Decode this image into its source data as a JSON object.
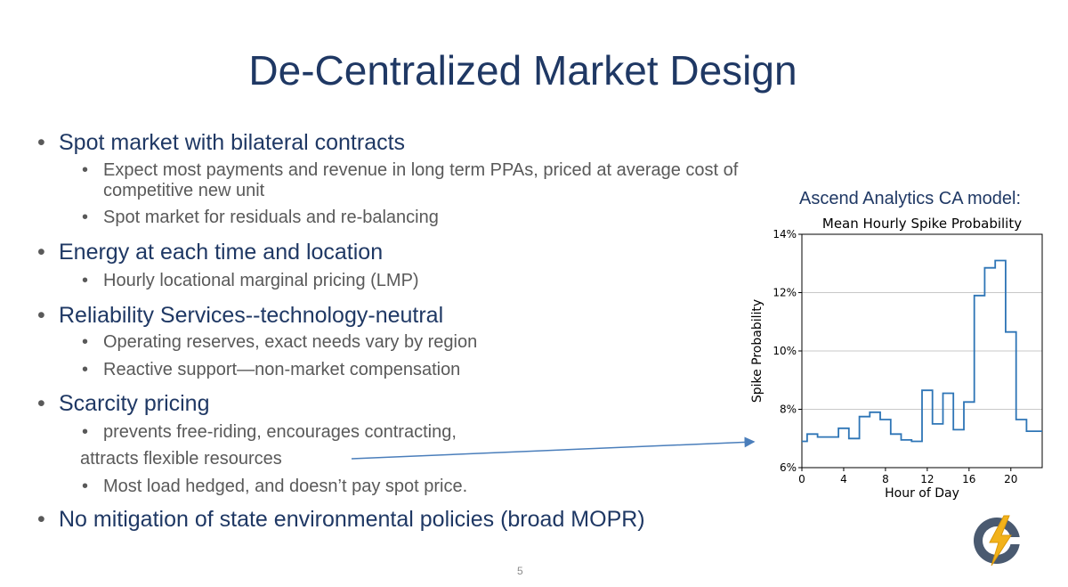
{
  "slide": {
    "title": "De-Centralized Market Design",
    "page_number": "5"
  },
  "bullets": {
    "b1": "Spot market with bilateral contracts",
    "b1_s1_line1": "Expect most payments and revenue in long term PPAs, priced at average cost of",
    "b1_s1_line2": "competitive new unit",
    "b1_s2": "Spot market for residuals and re-balancing",
    "b2": "Energy at each time and location",
    "b2_s1": "Hourly locational marginal pricing (LMP)",
    "b3": "Reliability Services--technology-neutral",
    "b3_s1": "Operating reserves, exact needs vary by region",
    "b3_s2": "Reactive support—non-market compensation",
    "b4": "Scarcity pricing",
    "b4_s1_line1": "prevents free-riding, encourages contracting,",
    "b4_s1_line2": "attracts flexible resources",
    "b4_s2": "Most load hedged, and doesn’t pay spot price.",
    "b5": "No mitigation of state environmental policies (broad MOPR)"
  },
  "chart_heading": "Ascend Analytics CA model:",
  "colors": {
    "title": "#1f3864",
    "body_text": "#595959",
    "line": "#2e75b6",
    "arrow": "#4a7ebb"
  },
  "chart_data": {
    "type": "line",
    "title": "Mean Hourly Spike Probability",
    "xlabel": "Hour of Day",
    "ylabel": "Spike Probability",
    "xlim": [
      0,
      23
    ],
    "ylim": [
      6,
      14
    ],
    "x_ticks": [
      "0",
      "4",
      "8",
      "12",
      "16",
      "20"
    ],
    "y_ticks": [
      "6%",
      "8%",
      "10%",
      "12%",
      "14%"
    ],
    "grid": "horizontal",
    "step": true,
    "x": [
      0,
      1,
      2,
      3,
      4,
      5,
      6,
      7,
      8,
      9,
      10,
      11,
      12,
      13,
      14,
      15,
      16,
      17,
      18,
      19,
      20,
      21,
      22,
      23
    ],
    "values": [
      6.9,
      7.15,
      7.05,
      7.05,
      7.35,
      7.0,
      7.75,
      7.9,
      7.65,
      7.15,
      6.95,
      6.9,
      8.65,
      7.5,
      8.55,
      7.3,
      8.25,
      11.9,
      12.85,
      13.1,
      10.65,
      7.65,
      7.25,
      7.25
    ]
  }
}
